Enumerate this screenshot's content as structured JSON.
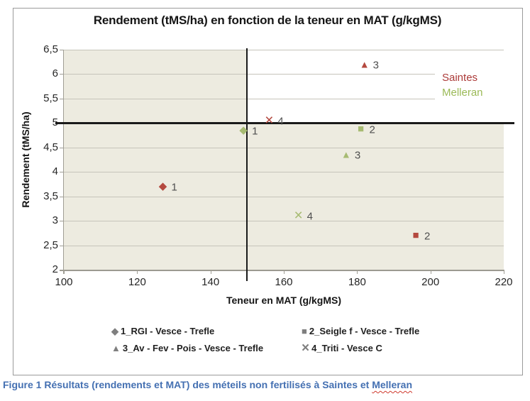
{
  "figure": {
    "caption_prefix": "Figure 1 Résultats (rendements et MAT) des méteils non fertilisés à Saintes et ",
    "caption_misspelled_word": "Melleran",
    "caption_color": "#4470b2"
  },
  "chart_data": {
    "type": "scatter",
    "title": "Rendement (tMS/ha) en fonction de la teneur en MAT (g/kgMS)",
    "x_axis": {
      "title": "Teneur en MAT (g/kgMS)",
      "min": 100,
      "max": 220,
      "ticks": [
        {
          "label": "100",
          "value": 100
        },
        {
          "label": "120",
          "value": 120
        },
        {
          "label": "140",
          "value": 140
        },
        {
          "label": "160",
          "value": 160
        },
        {
          "label": "180",
          "value": 180
        },
        {
          "label": "200",
          "value": 200
        },
        {
          "label": "220",
          "value": 220
        }
      ]
    },
    "y_axis": {
      "title": "Rendement (tMS/ha)",
      "min": 2,
      "max": 6.5,
      "ticks": [
        {
          "label": "6,5",
          "value": 6.5
        },
        {
          "label": "6",
          "value": 6
        },
        {
          "label": "5,5",
          "value": 5.5
        },
        {
          "label": "5",
          "value": 5
        },
        {
          "label": "4,5",
          "value": 4.5
        },
        {
          "label": "4",
          "value": 4
        },
        {
          "label": "3,5",
          "value": 3.5
        },
        {
          "label": "3",
          "value": 3
        },
        {
          "label": "2,5",
          "value": 2.5
        },
        {
          "label": "2",
          "value": 2
        }
      ]
    },
    "grid": true,
    "plot_bg": "#edebe0",
    "highlight_bg": "#ffffff",
    "reference_lines": {
      "x_value": 150,
      "y_value": 5
    },
    "series": [
      {
        "name": "Saintes",
        "color": "#b4493f",
        "label_color": "#ac3a38",
        "points": [
          {
            "marker": "diamond",
            "label": "1",
            "x": 127,
            "y": 3.7
          },
          {
            "marker": "square",
            "label": "2",
            "x": 196,
            "y": 2.7
          },
          {
            "marker": "triangle",
            "label": "3",
            "x": 182,
            "y": 6.2
          },
          {
            "marker": "x",
            "label": "4",
            "x": 156,
            "y": 5.05
          }
        ]
      },
      {
        "name": "Melleran",
        "color": "#a7bb72",
        "label_color": "#9bba57",
        "points": [
          {
            "marker": "diamond",
            "label": "1",
            "x": 149,
            "y": 4.85
          },
          {
            "marker": "square",
            "label": "2",
            "x": 181,
            "y": 4.87
          },
          {
            "marker": "triangle",
            "label": "3",
            "x": 177,
            "y": 4.35
          },
          {
            "marker": "x",
            "label": "4",
            "x": 164,
            "y": 3.1
          }
        ]
      }
    ],
    "legend": [
      {
        "marker": "diamond",
        "label": "1_RGI - Vesce - Trefle"
      },
      {
        "marker": "square",
        "label": "2_Seigle f - Vesce - Trefle"
      },
      {
        "marker": "triangle",
        "label": "3_Av - Fev - Pois - Vesce - Trefle"
      },
      {
        "marker": "x",
        "label": "4_Triti - Vesce C"
      }
    ],
    "legend_marker_color": "#7f7f7f"
  }
}
